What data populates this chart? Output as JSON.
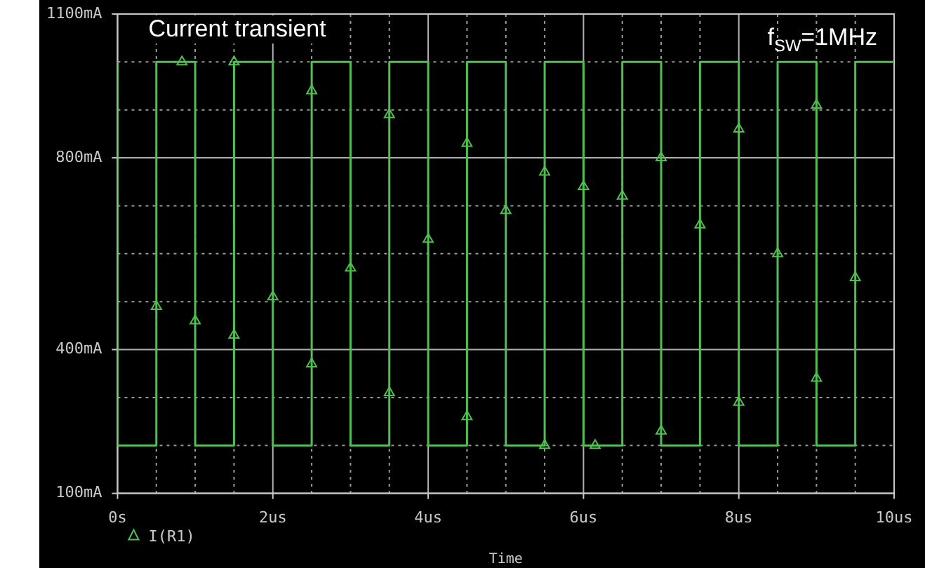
{
  "chart_data": {
    "type": "line",
    "title": "Current transient",
    "xlabel": "Time",
    "annotations": [
      "f$_{SW}$=1MHz"
    ],
    "xlim": [
      0,
      10
    ],
    "ylim": [
      100,
      1100
    ],
    "xticks": [
      {
        "value": 0,
        "label": "0s"
      },
      {
        "value": 0.5,
        "label": null
      },
      {
        "value": 1,
        "label": null
      },
      {
        "value": 1.5,
        "label": null
      },
      {
        "value": 2,
        "label": "2us"
      },
      {
        "value": 2.5,
        "label": null
      },
      {
        "value": 3,
        "label": null
      },
      {
        "value": 3.5,
        "label": null
      },
      {
        "value": 4,
        "label": "4us"
      },
      {
        "value": 4.5,
        "label": null
      },
      {
        "value": 5,
        "label": null
      },
      {
        "value": 5.5,
        "label": null
      },
      {
        "value": 6,
        "label": "6us"
      },
      {
        "value": 6.5,
        "label": null
      },
      {
        "value": 7,
        "label": null
      },
      {
        "value": 7.5,
        "label": null
      },
      {
        "value": 8,
        "label": "8us"
      },
      {
        "value": 8.5,
        "label": null
      },
      {
        "value": 9,
        "label": null
      },
      {
        "value": 9.5,
        "label": null
      },
      {
        "value": 10,
        "label": "10us"
      }
    ],
    "yticks": [
      {
        "value": 100,
        "label": "100mA"
      },
      {
        "value": 200,
        "label": null
      },
      {
        "value": 300,
        "label": null
      },
      {
        "value": 400,
        "label": "400mA"
      },
      {
        "value": 500,
        "label": null
      },
      {
        "value": 600,
        "label": null
      },
      {
        "value": 700,
        "label": null
      },
      {
        "value": 800,
        "label": "800mA"
      },
      {
        "value": 900,
        "label": null
      },
      {
        "value": 1000,
        "label": null
      },
      {
        "value": 1100,
        "label": "1100mA"
      }
    ],
    "grid": true,
    "legend": "bottom left",
    "series": [
      {
        "color": "#4fc04f",
        "marker": "none",
        "x": [
          0,
          0,
          0.5,
          0.5,
          1,
          1,
          1.5,
          1.5,
          2,
          2,
          2.5,
          2.5,
          3,
          3,
          3.5,
          3.5,
          4,
          4,
          4.5,
          4.5,
          5,
          5,
          5.5,
          5.5,
          6,
          6,
          6.5,
          6.5,
          7,
          7,
          7.5,
          7.5,
          8,
          8,
          8.5,
          8.5,
          9,
          9,
          9.5,
          9.5,
          10
        ],
        "values": [
          1000,
          200,
          200,
          1000,
          1000,
          200,
          200,
          1000,
          1000,
          200,
          200,
          1000,
          1000,
          200,
          200,
          1000,
          1000,
          200,
          200,
          1000,
          1000,
          200,
          200,
          1000,
          1000,
          200,
          200,
          1000,
          1000,
          200,
          200,
          1000,
          1000,
          200,
          200,
          1000,
          1000,
          200,
          200,
          1000,
          1000
        ]
      },
      {
        "type": "scatter",
        "name": "I(R1)",
        "color": "#4fc04f",
        "marker": "triangle",
        "x": [
          0.5,
          0.83,
          1,
          1.5,
          1.5,
          2,
          2.5,
          2.5,
          3,
          3.5,
          3.5,
          4,
          4.5,
          4.5,
          5,
          5.5,
          5.5,
          6,
          6.15,
          6.5,
          7,
          7,
          7.5,
          8,
          8,
          8.5,
          9,
          9,
          9.5
        ],
        "values": [
          490,
          1000,
          460,
          1000,
          430,
          510,
          940,
          370,
          570,
          890,
          310,
          630,
          830,
          260,
          690,
          770,
          200,
          740,
          200,
          720,
          800,
          230,
          660,
          860,
          290,
          600,
          910,
          340,
          550
        ]
      }
    ]
  }
}
